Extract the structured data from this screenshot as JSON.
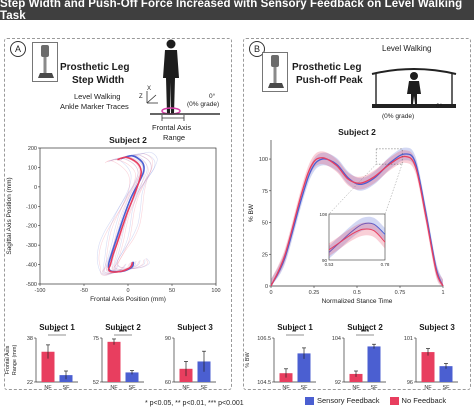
{
  "title": "Step Width and Push-Off Force Increased with Sensory Feedback on Level Walking Task",
  "footnote": "* p<0.05, ** p<0.01, *** p<0.001",
  "colors": {
    "sf": "#4b5fd1",
    "nf": "#e83e5f",
    "banner": "#3f3f3f"
  },
  "legend": {
    "sf": "Sensory Feedback",
    "nf": "No Feedback"
  },
  "icons": [
    "prosthetic-leg-icon",
    "walking-person-icon",
    "treadmill-icon",
    "axis-triad-icon"
  ],
  "panel_a": {
    "badge": "A",
    "heading_line1": "Prosthetic Leg",
    "heading_line2": "Step Width",
    "sub_line1": "Level Walking",
    "sub_line2": "Ankle Marker Traces",
    "grade": "0°",
    "grade_note": "(0% grade)",
    "axis_x_glyph": "X",
    "axis_z_glyph": "Z",
    "range_line1": "Frontal Axis",
    "range_line2": "Range"
  },
  "panel_b": {
    "badge": "B",
    "heading_line1": "Prosthetic Leg",
    "heading_line2": "Push-off Peak",
    "scene_title": "Level Walking",
    "grade": "0°",
    "grade_note": "(0% grade)"
  },
  "chart_data": [
    {
      "type": "line",
      "id": "trajectory",
      "title": "Subject 2",
      "xlabel": "Frontal Axis Position (mm)",
      "ylabel": "Sagittal Axis Position (mm)",
      "xlim": [
        -100,
        100
      ],
      "ylim": [
        -500,
        200
      ],
      "xticks": [
        -100,
        -50,
        0,
        50,
        100
      ],
      "yticks": [
        -500,
        -400,
        -300,
        -200,
        -100,
        0,
        100,
        200
      ],
      "series": [
        {
          "name": "",
          "color": "#4b5fd1",
          "x": [
            -8,
            5,
            16,
            18,
            12,
            4,
            -3,
            -9,
            -14,
            -19,
            -22,
            -21,
            -15,
            -4,
            5,
            6
          ],
          "y": [
            145,
            160,
            128,
            82,
            20,
            -50,
            -130,
            -210,
            -280,
            -350,
            -400,
            -428,
            -437,
            -432,
            -410,
            -385
          ]
        },
        {
          "name": "",
          "color": "#e83e5f",
          "x": [
            -12,
            -2,
            10,
            15,
            12,
            6,
            -1,
            -7,
            -12,
            -17,
            -20,
            -22,
            -17,
            -6,
            3,
            5
          ],
          "y": [
            140,
            152,
            125,
            80,
            20,
            -55,
            -135,
            -215,
            -285,
            -350,
            -400,
            -427,
            -438,
            -433,
            -412,
            -388
          ]
        }
      ]
    },
    {
      "type": "bar",
      "id": "a-subject1",
      "title": "Subject 1",
      "ylabel": "Frontal Axis Range (mm)",
      "categories": [
        "NF",
        "SF"
      ],
      "values": [
        33,
        24.5
      ],
      "errors": [
        2.5,
        1.5
      ],
      "colors": [
        "#e83e5f",
        "#4b5fd1"
      ],
      "ylim": [
        22,
        38
      ],
      "yticks": [
        22,
        38
      ],
      "significance": "**"
    },
    {
      "type": "bar",
      "id": "a-subject2",
      "title": "Subject 2",
      "categories": [
        "NF",
        "SF"
      ],
      "values": [
        73,
        57
      ],
      "errors": [
        1.5,
        1
      ],
      "colors": [
        "#e83e5f",
        "#4b5fd1"
      ],
      "ylim": [
        52,
        75
      ],
      "yticks": [
        52,
        75
      ],
      "significance": "***"
    },
    {
      "type": "bar",
      "id": "a-subject3",
      "title": "Subject 3",
      "categories": [
        "NF",
        "SF"
      ],
      "values": [
        69,
        74
      ],
      "errors": [
        5,
        7
      ],
      "colors": [
        "#e83e5f",
        "#4b5fd1"
      ],
      "ylim": [
        60,
        90
      ],
      "yticks": [
        60,
        90
      ],
      "significance": ""
    },
    {
      "type": "line",
      "id": "force",
      "title": "Subject 2",
      "xlabel": "Normalized Stance Time",
      "ylabel": "% BW",
      "xlim": [
        0,
        1
      ],
      "ylim": [
        0,
        115
      ],
      "xticks": [
        0,
        0.25,
        0.5,
        0.75,
        1
      ],
      "yticks": [
        0,
        25,
        50,
        75,
        100
      ],
      "series": [
        {
          "name": "Sensory Feedback",
          "color": "#4b5fd1",
          "x": [
            0,
            0.08,
            0.18,
            0.24,
            0.3,
            0.38,
            0.45,
            0.52,
            0.6,
            0.7,
            0.78,
            0.84,
            0.9,
            0.96,
            1
          ],
          "y": [
            0,
            22,
            70,
            93,
            100,
            96,
            85,
            80,
            85,
            98,
            104,
            97,
            58,
            14,
            0
          ]
        },
        {
          "name": "No Feedback",
          "color": "#e83e5f",
          "x": [
            0,
            0.08,
            0.18,
            0.24,
            0.3,
            0.38,
            0.45,
            0.52,
            0.6,
            0.7,
            0.78,
            0.84,
            0.9,
            0.96,
            1
          ],
          "y": [
            0,
            24,
            74,
            96,
            101,
            95,
            84,
            81,
            86,
            97,
            102,
            94,
            55,
            12,
            0
          ]
        }
      ],
      "inset": {
        "xlim": [
          0.53,
          0.78
        ],
        "ylim": [
          90,
          108
        ],
        "xticks": [
          0.53,
          0.78
        ],
        "yticks": [
          90,
          108
        ]
      }
    },
    {
      "type": "bar",
      "id": "b-subject1",
      "title": "Subject 1",
      "ylabel": "% BW",
      "categories": [
        "NF",
        "SF"
      ],
      "values": [
        104.9,
        105.8
      ],
      "errors": [
        0.2,
        0.25
      ],
      "colors": [
        "#e83e5f",
        "#4b5fd1"
      ],
      "ylim": [
        104.5,
        106.5
      ],
      "yticks": [
        104.5,
        106.5
      ],
      "significance": "*"
    },
    {
      "type": "bar",
      "id": "b-subject2",
      "title": "Subject 2",
      "categories": [
        "NF",
        "SF"
      ],
      "values": [
        94.2,
        101.7
      ],
      "errors": [
        0.8,
        0.6
      ],
      "colors": [
        "#e83e5f",
        "#4b5fd1"
      ],
      "ylim": [
        92,
        104
      ],
      "yticks": [
        92,
        104
      ],
      "significance": "***"
    },
    {
      "type": "bar",
      "id": "b-subject3",
      "title": "Subject 3",
      "categories": [
        "NF",
        "SF"
      ],
      "values": [
        99.4,
        97.8
      ],
      "errors": [
        0.4,
        0.3
      ],
      "colors": [
        "#e83e5f",
        "#4b5fd1"
      ],
      "ylim": [
        96,
        101
      ],
      "yticks": [
        96,
        101
      ],
      "significance": ""
    }
  ]
}
